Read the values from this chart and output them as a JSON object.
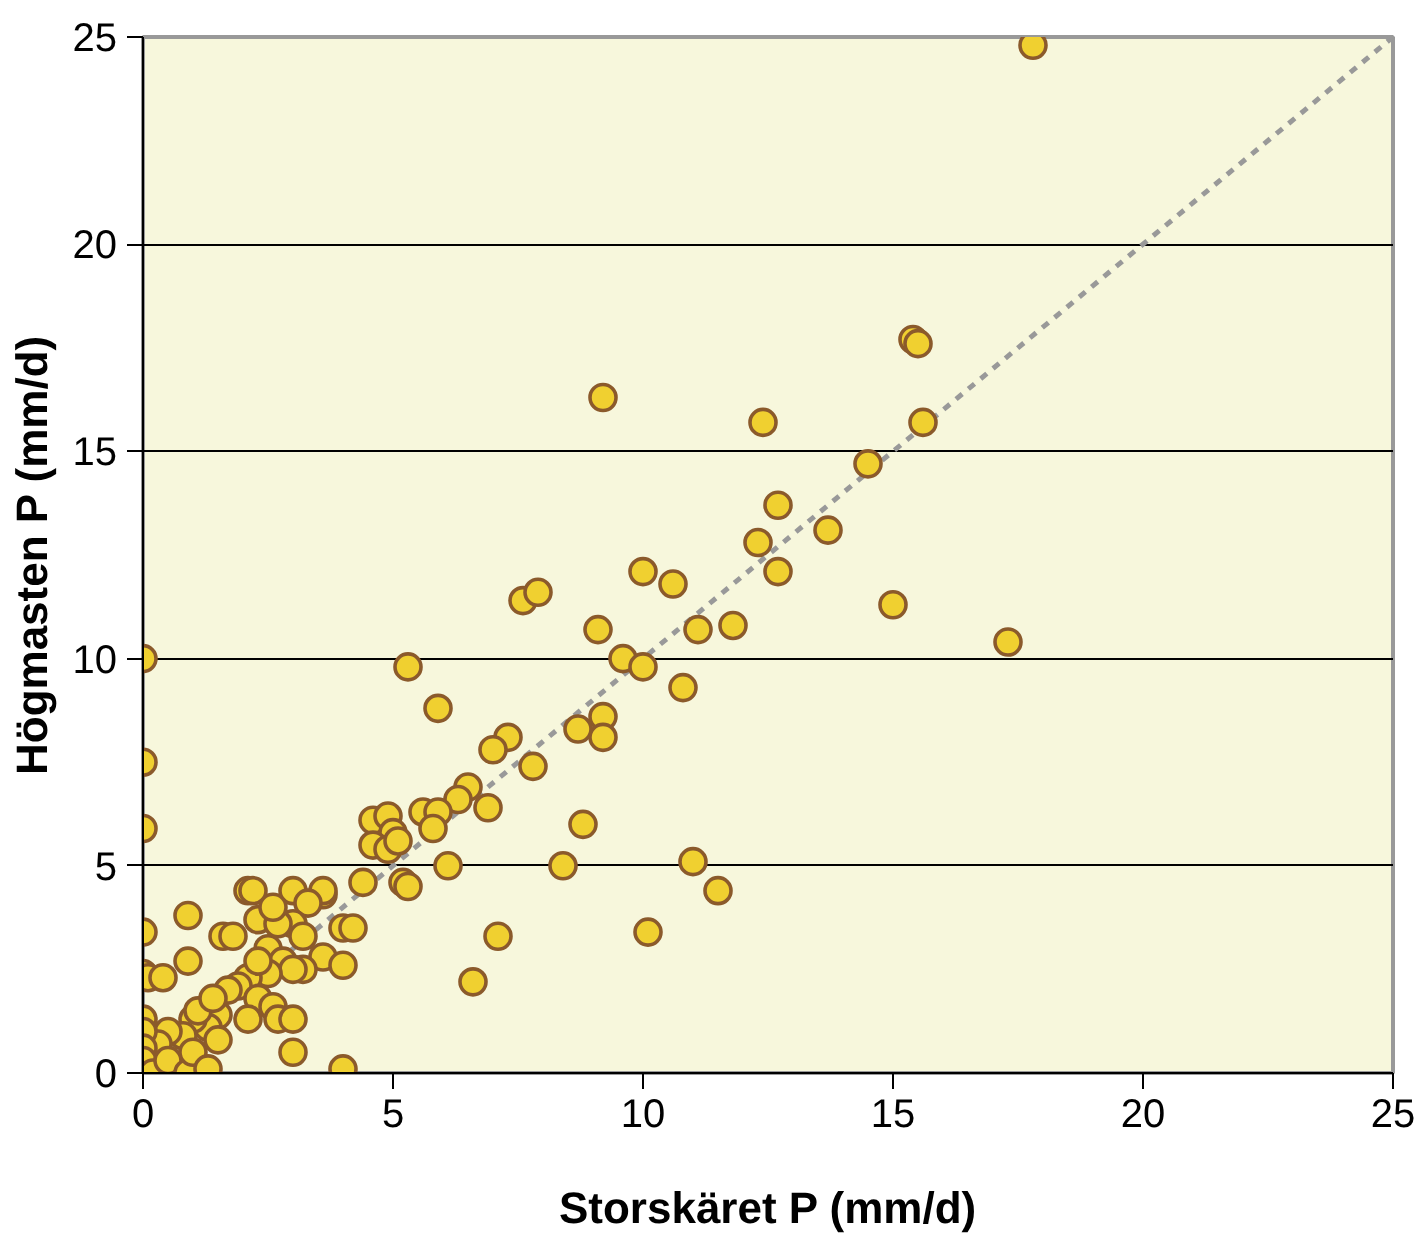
{
  "chart_data": {
    "type": "scatter",
    "xlabel": "Storskäret P (mm/d)",
    "ylabel": "Högmasten P (mm/d)",
    "xlim": [
      0,
      25
    ],
    "ylim": [
      0,
      25
    ],
    "xticks": [
      0,
      5,
      10,
      15,
      20,
      25
    ],
    "yticks": [
      0,
      5,
      10,
      15,
      20,
      25
    ],
    "grid": "y",
    "marker": "circle",
    "series": [
      {
        "color": "#f0d030",
        "x": [
          17.8,
          15.4,
          15.5,
          9.2,
          12.4,
          15.6,
          14.5,
          12.7,
          13.7,
          12.3,
          10.0,
          10.6,
          12.7,
          7.6,
          7.9,
          15.0,
          17.3,
          9.1,
          11.1,
          11.8,
          9.6,
          10.0,
          5.3,
          10.8,
          5.9,
          9.2,
          9.2,
          8.7,
          7.3,
          7.0,
          7.8,
          6.9,
          6.5,
          6.3,
          5.6,
          5.9,
          5.8,
          4.6,
          4.9,
          5.0,
          4.6,
          4.9,
          5.1,
          8.8,
          8.4,
          6.1,
          5.2,
          5.3,
          4.4,
          11.0,
          11.5,
          3.6,
          3.6,
          7.1,
          10.1,
          6.6,
          4.0,
          0,
          0,
          0,
          0,
          0,
          0.1,
          0.4,
          0.9,
          0.9,
          2.1,
          2.2,
          1.6,
          1.8,
          2.3,
          2.5,
          2.8,
          3.0,
          3.3,
          3.0,
          3.2,
          3.6,
          3.2,
          3.0,
          2.5,
          2.1,
          1.9,
          1.7,
          2.3,
          2.6,
          2.7,
          3.0,
          2.1,
          1.5,
          1.3,
          1.0,
          0.8,
          0.5,
          0.3,
          0,
          0,
          0,
          0,
          0.2,
          0.5,
          0.9,
          1.0,
          1.3,
          3.0,
          1.5,
          1.1,
          1.4,
          2.3,
          2.7,
          4.0,
          4.2,
          4.0,
          2.6
        ],
        "values": [
          24.8,
          17.7,
          17.6,
          16.3,
          15.7,
          15.7,
          14.7,
          13.7,
          13.1,
          12.8,
          12.1,
          11.8,
          12.1,
          11.4,
          11.6,
          11.3,
          10.4,
          10.7,
          10.7,
          10.8,
          10.0,
          9.8,
          9.8,
          9.3,
          8.8,
          8.6,
          8.1,
          8.3,
          8.1,
          7.8,
          7.4,
          6.4,
          6.9,
          6.6,
          6.3,
          6.3,
          5.9,
          6.1,
          6.2,
          5.8,
          5.5,
          5.4,
          5.6,
          6.0,
          5.0,
          5.0,
          4.6,
          4.5,
          4.6,
          5.1,
          4.4,
          4.3,
          4.4,
          3.3,
          3.4,
          2.2,
          0.1,
          10,
          7.5,
          5.9,
          3.4,
          2.4,
          2.3,
          2.3,
          2.7,
          3.8,
          4.4,
          4.4,
          3.3,
          3.3,
          3.7,
          3.0,
          2.7,
          4.4,
          4.1,
          3.6,
          3.3,
          2.8,
          2.5,
          2.5,
          2.4,
          2.3,
          2.1,
          2.0,
          1.8,
          1.6,
          1.3,
          1.3,
          1.3,
          1.4,
          1.1,
          1.3,
          0.9,
          1.0,
          0.7,
          1.3,
          1.0,
          0.6,
          0.3,
          0.0,
          0.3,
          0.0,
          0.5,
          0.1,
          0.5,
          0.8,
          1.5,
          1.8,
          2.7,
          3.6,
          3.5,
          3.5,
          2.6,
          4.0
        ]
      },
      {
        "type": "line",
        "color": "#999999",
        "line_style": "dashed",
        "marker": "none",
        "x": [
          0,
          25
        ],
        "values": [
          0,
          25
        ]
      }
    ]
  }
}
